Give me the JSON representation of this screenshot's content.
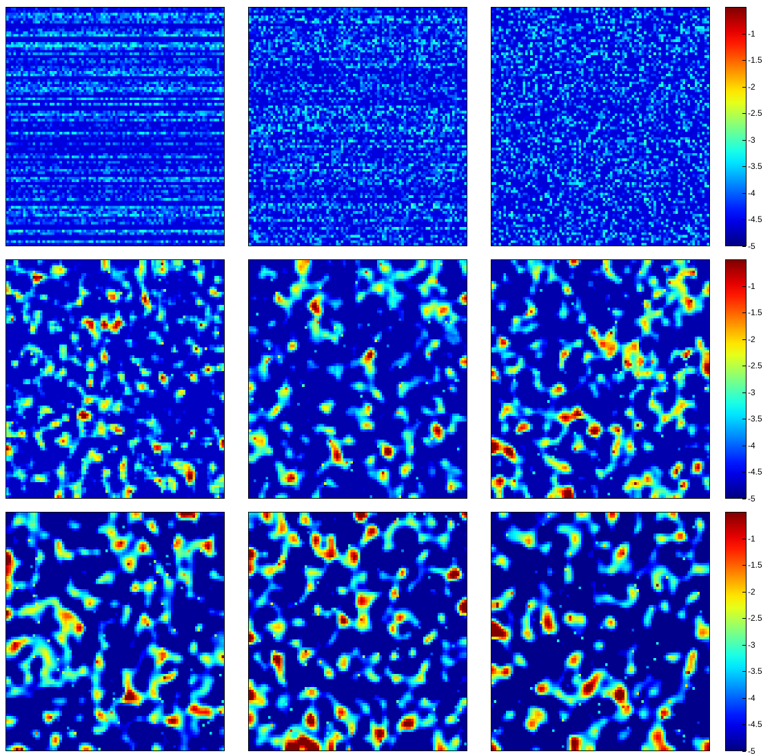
{
  "chart_data": {
    "type": "heatmap",
    "layout": "3x3 grid of heatmap panels, one colorbar per row",
    "colormap": "jet",
    "color_range": [
      -5,
      -0.5
    ],
    "grid": false,
    "axes_ticks_shown": false,
    "colorbar_ticks": [
      "-1",
      "-1.5",
      "-2",
      "-2.5",
      "-3",
      "-3.5",
      "-4",
      "-4.5",
      "-5"
    ],
    "colorbar_tick_values": [
      -1,
      -1.5,
      -2,
      -2.5,
      -3,
      -3.5,
      -4,
      -4.5,
      -5
    ],
    "panels": [
      {
        "row": 1,
        "col": 1,
        "pattern": "horizontal streaks, fine-grained noise",
        "dominant_value": -4.6
      },
      {
        "row": 1,
        "col": 2,
        "pattern": "weaker horizontal streaks, fine-grained noise",
        "dominant_value": -4.6
      },
      {
        "row": 1,
        "col": 3,
        "pattern": "fine-grained noise",
        "dominant_value": -4.6
      },
      {
        "row": 2,
        "col": 1,
        "pattern": "fine noise with small clusters",
        "dominant_value": -4.7
      },
      {
        "row": 2,
        "col": 2,
        "pattern": "small clusters",
        "dominant_value": -4.8
      },
      {
        "row": 2,
        "col": 3,
        "pattern": "medium clusters",
        "dominant_value": -4.8
      },
      {
        "row": 3,
        "col": 1,
        "pattern": "large clusters with isolated peaks",
        "dominant_value": -4.9
      },
      {
        "row": 3,
        "col": 2,
        "pattern": "large clusters with isolated peaks",
        "dominant_value": -4.9
      },
      {
        "row": 3,
        "col": 3,
        "pattern": "sparse large clusters with one high peak",
        "dominant_value": -4.95
      }
    ]
  }
}
